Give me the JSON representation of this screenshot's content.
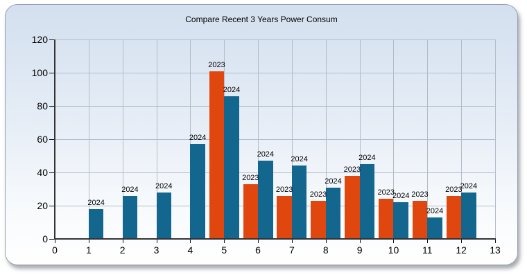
{
  "panel": {
    "title": "Compare Recent 3 Years Power Consum"
  },
  "chart_data": {
    "type": "bar",
    "title": "Compare Recent 3 Years Power Consum",
    "xlabel": "",
    "ylabel": "",
    "xlim": [
      0,
      13
    ],
    "ylim": [
      0,
      120
    ],
    "x_ticks": [
      0,
      1,
      2,
      3,
      4,
      5,
      6,
      7,
      8,
      9,
      10,
      11,
      12,
      13
    ],
    "y_ticks": [
      0,
      20,
      40,
      60,
      80,
      100,
      120
    ],
    "grid": true,
    "legend_position": "none",
    "bar_labels": "series name rendered above each bar",
    "categories": [
      1,
      2,
      3,
      4,
      5,
      6,
      7,
      8,
      9,
      10,
      11,
      12
    ],
    "series": [
      {
        "name": "2023",
        "color": "#e0470e",
        "values": [
          null,
          null,
          null,
          null,
          101,
          33,
          26,
          23,
          38,
          24,
          23,
          26
        ]
      },
      {
        "name": "2024",
        "color": "#13678e",
        "values": [
          18,
          26,
          28,
          57,
          86,
          47,
          44,
          31,
          45,
          22,
          13,
          28
        ]
      }
    ]
  },
  "colors": {
    "series_2023": "#e0470e",
    "series_2024": "#13678e",
    "panel_gradient_top": "#d4e0ef",
    "panel_gradient_bottom": "#ffffff",
    "gridline": "#b2bcc9",
    "axis": "#333333",
    "text": "#000000"
  }
}
